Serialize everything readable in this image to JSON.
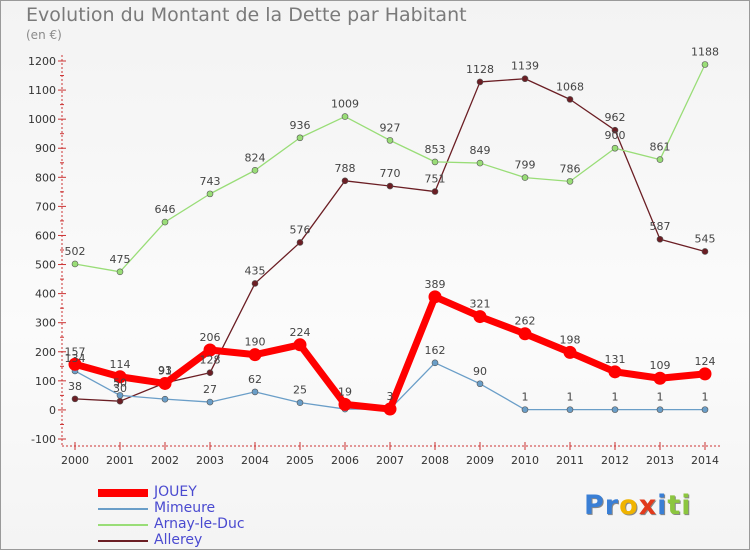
{
  "header": {
    "title": "Evolution du Montant de la Dette par Habitant",
    "subtitle": "(en €)"
  },
  "logo": {
    "letters": [
      "P",
      "r",
      "o",
      "x",
      "i",
      "t",
      "i"
    ],
    "colors": [
      "#3a7fd5",
      "#3a7fd5",
      "#f0b400",
      "#e23a1c",
      "#3a7fd5",
      "#8cc63f",
      "#8cc63f"
    ]
  },
  "chart_data": {
    "type": "line",
    "title": "Evolution du Montant de la Dette par Habitant",
    "subtitle": "(en €)",
    "xlabel": "",
    "ylabel": "",
    "x": [
      "2000",
      "2001",
      "2002",
      "2003",
      "2004",
      "2005",
      "2006",
      "2007",
      "2008",
      "2009",
      "2010",
      "2011",
      "2012",
      "2013",
      "2014"
    ],
    "ylim": [
      -100,
      1200
    ],
    "yticks": [
      -100,
      0,
      100,
      200,
      300,
      400,
      500,
      600,
      700,
      800,
      900,
      1000,
      1100,
      1200
    ],
    "grid": false,
    "legend_position": "bottom-left",
    "series": [
      {
        "name": "Allerey",
        "color": "#6b1e24",
        "values": [
          38,
          30,
          93,
          128,
          435,
          576,
          788,
          770,
          751,
          1128,
          1139,
          1068,
          962,
          587,
          545
        ],
        "labels": [
          "38",
          "30",
          "93",
          "128",
          "435",
          "576",
          "788",
          "770",
          "751",
          "1128",
          "1139",
          "1068",
          "962",
          "587",
          "545"
        ]
      },
      {
        "name": "Arnay-le-Duc",
        "color": "#99dd77",
        "values": [
          502,
          475,
          646,
          743,
          824,
          936,
          1009,
          927,
          853,
          849,
          799,
          786,
          900,
          861,
          1188
        ],
        "labels": [
          "502",
          "475",
          "646",
          "743",
          "824",
          "936",
          "1009",
          "927",
          "853",
          "849",
          "799",
          "786",
          "900",
          "861",
          "1188"
        ]
      },
      {
        "name": "Mimeure",
        "color": "#6a9ec8",
        "values": [
          134,
          50,
          37,
          27,
          62,
          25,
          3,
          3,
          162,
          90,
          1,
          1,
          1,
          1,
          1
        ],
        "labels": [
          "134",
          "50",
          "",
          "27",
          "62",
          "25",
          "",
          "",
          "162",
          "90",
          "1",
          "1",
          "1",
          "1",
          "1"
        ]
      },
      {
        "name": "JOUEY",
        "color": "#ff0000",
        "values": [
          157,
          114,
          91,
          206,
          190,
          224,
          19,
          3,
          389,
          321,
          262,
          198,
          131,
          109,
          124
        ],
        "labels": [
          "157",
          "114",
          "91",
          "206",
          "190",
          "224",
          "19",
          "3",
          "389",
          "321",
          "262",
          "198",
          "131",
          "109",
          "124"
        ]
      }
    ]
  },
  "legend": {
    "items": [
      {
        "label": "JOUEY",
        "color": "#ff0000"
      },
      {
        "label": "Mimeure",
        "color": "#6a9ec8"
      },
      {
        "label": "Arnay-le-Duc",
        "color": "#99dd77"
      },
      {
        "label": "Allerey",
        "color": "#6b1e24"
      }
    ]
  }
}
